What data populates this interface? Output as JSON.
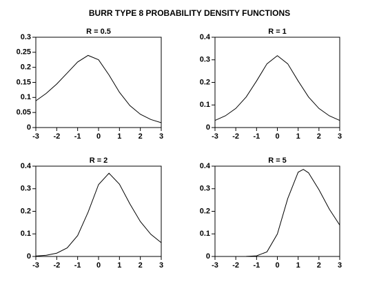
{
  "title": "BURR TYPE 8 PROBABILITY DENSITY FUNCTIONS",
  "chart_data": [
    {
      "type": "line",
      "title": "R = 0.5",
      "color": "#000000",
      "x": [
        -3,
        -2.5,
        -2,
        -1.5,
        -1,
        -0.5,
        0,
        0.5,
        1,
        1.5,
        2,
        2.5,
        3
      ],
      "values": [
        0.0888,
        0.1137,
        0.1446,
        0.181,
        0.2177,
        0.2396,
        0.2251,
        0.1747,
        0.1171,
        0.0729,
        0.0442,
        0.0267,
        0.0161
      ],
      "xlim": [
        -3,
        3
      ],
      "xticks": [
        -3,
        -2,
        -1,
        0,
        1,
        2,
        3
      ],
      "ylim": [
        0,
        0.3
      ],
      "yticks": [
        0,
        0.05,
        0.1,
        0.15,
        0.2,
        0.25,
        0.3
      ]
    },
    {
      "type": "line",
      "title": "R = 1",
      "color": "#000000",
      "x": [
        -3,
        -2.5,
        -2,
        -1.5,
        -1,
        -0.5,
        0,
        0.5,
        1,
        1.5,
        2,
        2.5,
        3
      ],
      "values": [
        0.0316,
        0.0519,
        0.0846,
        0.1353,
        0.2063,
        0.2823,
        0.3183,
        0.2823,
        0.2063,
        0.1353,
        0.0846,
        0.0519,
        0.0316
      ],
      "xlim": [
        -3,
        3
      ],
      "xticks": [
        -3,
        -2,
        -1,
        0,
        1,
        2,
        3
      ],
      "ylim": [
        0,
        0.4
      ],
      "yticks": [
        0,
        0.1,
        0.2,
        0.3,
        0.4
      ]
    },
    {
      "type": "line",
      "title": "R = 2",
      "color": "#000000",
      "x": [
        -3,
        -2.5,
        -2,
        -1.5,
        -1,
        -0.5,
        0,
        0.5,
        1,
        1.5,
        2,
        2.5,
        3
      ],
      "values": [
        0.002,
        0.0054,
        0.0145,
        0.0378,
        0.0926,
        0.1959,
        0.3183,
        0.3687,
        0.32,
        0.2328,
        0.1547,
        0.0984,
        0.0612
      ],
      "xlim": [
        -3,
        3
      ],
      "xticks": [
        -3,
        -2,
        -1,
        0,
        1,
        2,
        3
      ],
      "ylim": [
        0,
        0.4
      ],
      "yticks": [
        0,
        0.1,
        0.2,
        0.3,
        0.4
      ]
    },
    {
      "type": "line",
      "title": "R = 5",
      "color": "#000000",
      "x": [
        -3,
        -2.5,
        -2,
        -1.5,
        -1,
        -0.5,
        0,
        0.5,
        1,
        1.25,
        1.5,
        2,
        2.5,
        3
      ],
      "values": [
        0,
        0,
        0,
        0.0003,
        0.0026,
        0.0205,
        0.0995,
        0.2566,
        0.3732,
        0.3856,
        0.3705,
        0.2957,
        0.2095,
        0.139
      ],
      "xlim": [
        -3,
        3
      ],
      "xticks": [
        -3,
        -2,
        -1,
        0,
        1,
        2,
        3
      ],
      "ylim": [
        0,
        0.4
      ],
      "yticks": [
        0,
        0.1,
        0.2,
        0.3,
        0.4
      ]
    }
  ]
}
